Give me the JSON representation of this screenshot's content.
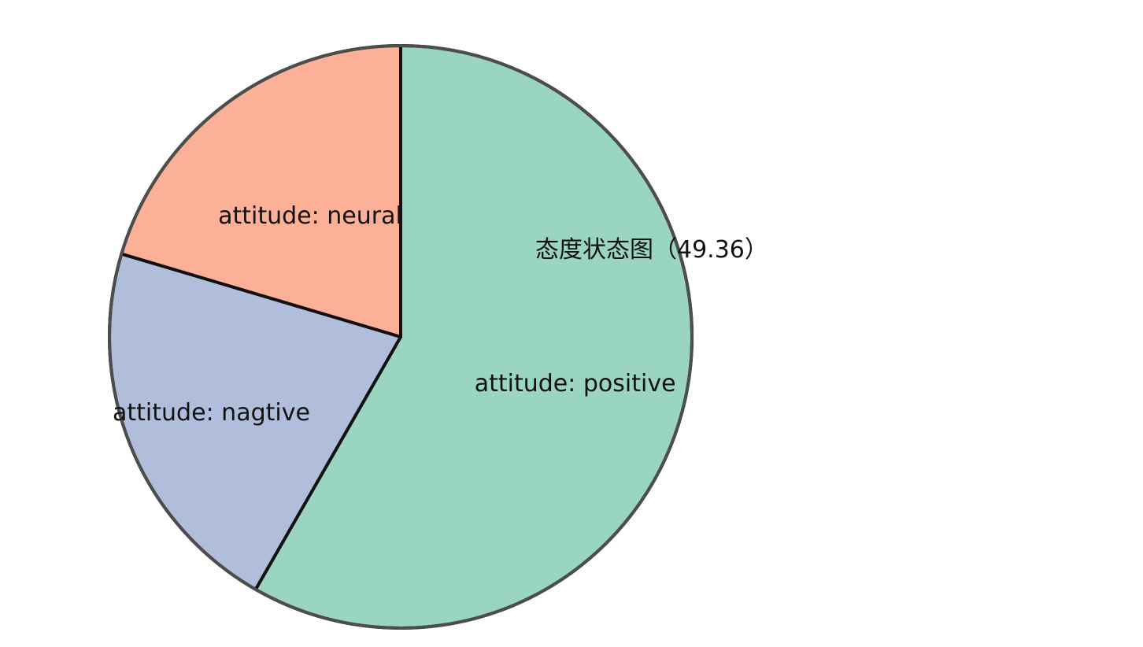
{
  "chart_data": {
    "type": "pie",
    "title": "态度状态图（49.36）",
    "slices": [
      {
        "label": "attitude: positive",
        "value": 58.3,
        "color": "#9ad5c2"
      },
      {
        "label": "attitude: nagtive",
        "value": 21.3,
        "color": "#b0bedb"
      },
      {
        "label": "attitude: neural",
        "value": 20.4,
        "color": "#fcb098"
      }
    ],
    "edge_color": "#111111",
    "outline_color": "#4d4d4d",
    "legend": "none",
    "label_position": "inside"
  }
}
